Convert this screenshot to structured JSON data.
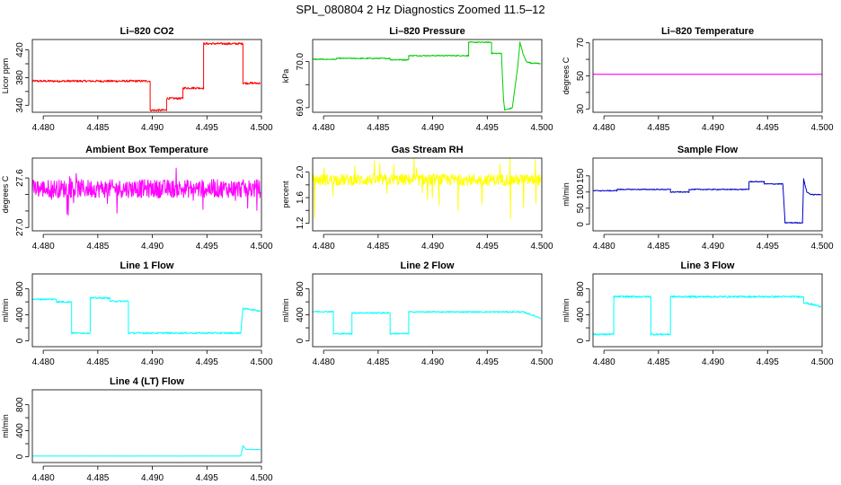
{
  "figure": {
    "title": "SPL_080804  2 Hz Diagnostics Zoomed 11.5–12"
  },
  "chart_data": [
    {
      "type": "line",
      "title": "Li–820 CO2",
      "ylabel": "Licor ppm",
      "color": "#ff0000",
      "xlim": [
        4.479,
        4.5
      ],
      "ylim": [
        330,
        435
      ],
      "yticks": [
        "340",
        "380",
        "420"
      ],
      "yticks_minor": [
        "360",
        "400"
      ],
      "xticks": [
        "4.480",
        "4.485",
        "4.490",
        "4.495",
        "4.500"
      ],
      "noise": 1.5,
      "x": [
        4.479,
        4.4898,
        4.4898,
        4.4913,
        4.4913,
        4.4928,
        4.4928,
        4.4947,
        4.4947,
        4.4983,
        4.4983,
        4.4999
      ],
      "y": [
        375,
        375,
        333,
        333,
        350,
        350,
        365,
        365,
        429,
        429,
        372,
        372
      ]
    },
    {
      "type": "line",
      "title": "Li–820 Pressure",
      "ylabel": "kPa",
      "color": "#00cc00",
      "xlim": [
        4.479,
        4.5
      ],
      "ylim": [
        68.9,
        70.48
      ],
      "yticks": [
        "69.0",
        "70.0"
      ],
      "yticks_minor": [
        "69.5"
      ],
      "xticks": [
        "4.480",
        "4.485",
        "4.490",
        "4.495",
        "4.500"
      ],
      "noise": 0.012,
      "x": [
        4.479,
        4.4812,
        4.4812,
        4.4861,
        4.4861,
        4.4878,
        4.4878,
        4.4933,
        4.4933,
        4.4954,
        4.4954,
        4.4963,
        4.4965,
        4.4966,
        4.4971,
        4.4973,
        4.4978,
        4.498,
        4.4983,
        4.4986,
        4.499,
        4.4999
      ],
      "y": [
        70.05,
        70.05,
        70.07,
        70.07,
        70.04,
        70.04,
        70.13,
        70.13,
        70.42,
        70.42,
        70.18,
        70.18,
        69.15,
        68.95,
        68.98,
        69.0,
        69.9,
        70.42,
        70.15,
        70.0,
        69.97,
        69.96
      ]
    },
    {
      "type": "line",
      "title": "Li–820 Temperature",
      "ylabel": "degrees C",
      "color": "#ff00ff",
      "xlim": [
        4.479,
        4.5
      ],
      "ylim": [
        28,
        72
      ],
      "yticks": [
        "30",
        "50",
        "70"
      ],
      "yticks_minor": [
        "40",
        "60"
      ],
      "xticks": [
        "4.480",
        "4.485",
        "4.490",
        "4.495",
        "4.500"
      ],
      "noise": 0,
      "x": [
        4.479,
        4.5
      ],
      "y": [
        51,
        51
      ]
    },
    {
      "type": "line",
      "title": "Ambient Box Temperature",
      "ylabel": "degrees C",
      "color": "#ff00ff",
      "xlim": [
        4.479,
        4.5
      ],
      "ylim": [
        26.96,
        27.84
      ],
      "yticks": [
        "27.0",
        "27.6"
      ],
      "yticks_minor": [
        "27.2",
        "27.4"
      ],
      "xticks": [
        "4.480",
        "4.485",
        "4.490",
        "4.495",
        "4.500"
      ],
      "noise": 0.11,
      "spikes": 0.22,
      "x": [
        4.479,
        4.4999
      ],
      "y": [
        27.47,
        27.47
      ]
    },
    {
      "type": "line",
      "title": "Gas Stream RH",
      "ylabel": "percent",
      "color": "#ffff00",
      "xlim": [
        4.479,
        4.5
      ],
      "ylim": [
        1.08,
        2.22
      ],
      "yticks": [
        "1.2",
        "1.6",
        "2.0"
      ],
      "yticks_minor": [
        "1.4",
        "1.8"
      ],
      "xticks": [
        "4.480",
        "4.485",
        "4.490",
        "4.495",
        "4.500"
      ],
      "noise": 0.09,
      "spikes": 0.5,
      "x": [
        4.479,
        4.4999
      ],
      "y": [
        1.88,
        1.88
      ]
    },
    {
      "type": "line",
      "title": "Sample Flow",
      "ylabel": "ml/min",
      "color": "#0000cc",
      "xlim": [
        4.479,
        4.5
      ],
      "ylim": [
        -20,
        205
      ],
      "yticks": [
        "0",
        "50",
        "100",
        "150"
      ],
      "yticks_minor": [],
      "xticks": [
        "4.480",
        "4.485",
        "4.490",
        "4.495",
        "4.500"
      ],
      "noise": 1.5,
      "x": [
        4.479,
        4.4812,
        4.4812,
        4.4861,
        4.4861,
        4.4878,
        4.4878,
        4.4933,
        4.4933,
        4.4947,
        4.4947,
        4.4964,
        4.4966,
        4.4982,
        4.4983,
        4.4986,
        4.499,
        4.4999
      ],
      "y": [
        104,
        104,
        108,
        108,
        100,
        100,
        108,
        108,
        132,
        132,
        125,
        125,
        5,
        5,
        140,
        100,
        92,
        92
      ]
    },
    {
      "type": "line",
      "title": "Line 1 Flow",
      "ylabel": "ml/min",
      "color": "#00ffff",
      "xlim": [
        4.479,
        4.5
      ],
      "ylim": [
        -90,
        1030
      ],
      "yticks": [
        "0",
        "400",
        "800"
      ],
      "yticks_minor": [
        "200",
        "600"
      ],
      "xticks": [
        "4.480",
        "4.485",
        "4.490",
        "4.495",
        "4.500"
      ],
      "noise": 12,
      "x": [
        4.479,
        4.4812,
        4.4812,
        4.4826,
        4.4826,
        4.4843,
        4.4843,
        4.4861,
        4.4861,
        4.4878,
        4.4878,
        4.4981,
        4.4983,
        4.4999
      ],
      "y": [
        640,
        640,
        600,
        600,
        120,
        120,
        660,
        660,
        610,
        610,
        120,
        120,
        500,
        460
      ]
    },
    {
      "type": "line",
      "title": "Line 2 Flow",
      "ylabel": "ml/min",
      "color": "#00ffff",
      "xlim": [
        4.479,
        4.5
      ],
      "ylim": [
        -90,
        1030
      ],
      "yticks": [
        "0",
        "400",
        "800"
      ],
      "yticks_minor": [
        "200",
        "600"
      ],
      "xticks": [
        "4.480",
        "4.485",
        "4.490",
        "4.495",
        "4.500"
      ],
      "noise": 10,
      "x": [
        4.479,
        4.4809,
        4.4809,
        4.4826,
        4.4826,
        4.4861,
        4.4861,
        4.4878,
        4.4878,
        4.4983,
        4.4999
      ],
      "y": [
        450,
        450,
        110,
        110,
        430,
        430,
        110,
        110,
        445,
        445,
        350
      ]
    },
    {
      "type": "line",
      "title": "Line 3 Flow",
      "ylabel": "ml/min",
      "color": "#00ffff",
      "xlim": [
        4.479,
        4.5
      ],
      "ylim": [
        -90,
        1030
      ],
      "yticks": [
        "0",
        "400",
        "800"
      ],
      "yticks_minor": [
        "200",
        "600"
      ],
      "xticks": [
        "4.480",
        "4.485",
        "4.490",
        "4.495",
        "4.500"
      ],
      "noise": 14,
      "x": [
        4.479,
        4.4809,
        4.4809,
        4.4843,
        4.4843,
        4.4861,
        4.4861,
        4.4983,
        4.4983,
        4.4999
      ],
      "y": [
        100,
        100,
        680,
        680,
        100,
        100,
        680,
        680,
        590,
        530
      ]
    },
    {
      "type": "line",
      "title": "Line 4 (LT) Flow",
      "ylabel": "ml/min",
      "color": "#00ffff",
      "xlim": [
        4.479,
        4.5
      ],
      "ylim": [
        -90,
        1030
      ],
      "yticks": [
        "0",
        "400",
        "800"
      ],
      "yticks_minor": [
        "200",
        "600"
      ],
      "xticks": [
        "4.480",
        "4.485",
        "4.490",
        "4.495",
        "4.500"
      ],
      "noise": 2,
      "x": [
        4.479,
        4.4981,
        4.4983,
        4.4986,
        4.4999
      ],
      "y": [
        10,
        10,
        170,
        110,
        110
      ]
    }
  ]
}
